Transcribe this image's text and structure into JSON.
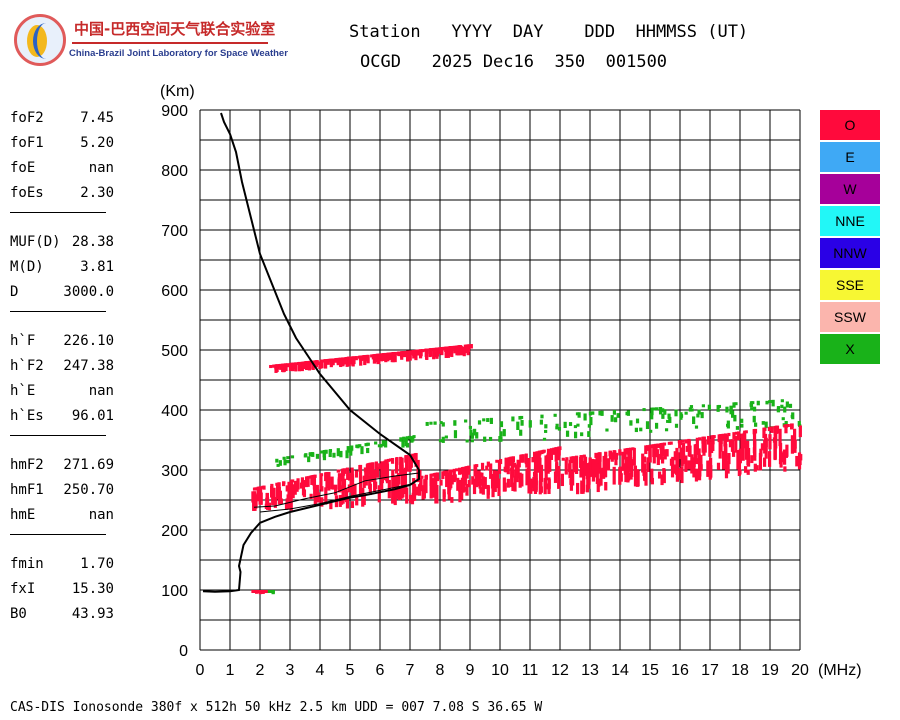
{
  "logo": {
    "name_cn": "中国-巴西空间天气联合实验室",
    "name_en": "China-Brazil Joint Laboratory for Space Weather"
  },
  "header": {
    "labels": "Station   YYYY  DAY    DDD  HHMMSS (UT)",
    "values": "OCGD   2025 Dec16  350  001500"
  },
  "parameters": [
    [
      {
        "label": "foF2",
        "value": "7.45"
      },
      {
        "label": "foF1",
        "value": "5.20"
      },
      {
        "label": "foE",
        "value": "nan"
      },
      {
        "label": "foEs",
        "value": "2.30"
      }
    ],
    [
      {
        "label": "MUF(D)",
        "value": "28.38"
      },
      {
        "label": "M(D)",
        "value": "3.81"
      },
      {
        "label": "D",
        "value": "3000.0"
      }
    ],
    [
      {
        "label": "h`F",
        "value": "226.10"
      },
      {
        "label": "h`F2",
        "value": "247.38"
      },
      {
        "label": "h`E",
        "value": "nan"
      },
      {
        "label": "h`Es",
        "value": "96.01"
      }
    ],
    [
      {
        "label": "hmF2",
        "value": "271.69"
      },
      {
        "label": "hmF1",
        "value": "250.70"
      },
      {
        "label": "hmE",
        "value": "nan"
      }
    ],
    [
      {
        "label": "fmin",
        "value": "1.70"
      },
      {
        "label": "fxI",
        "value": "15.30"
      },
      {
        "label": "B0",
        "value": "43.93"
      }
    ]
  ],
  "legend": [
    {
      "label": "O",
      "color": "#ff0a3c"
    },
    {
      "label": "E",
      "color": "#3fa9f5"
    },
    {
      "label": "W",
      "color": "#a6009a"
    },
    {
      "label": "NNE",
      "color": "#22f7f7"
    },
    {
      "label": "NNW",
      "color": "#2a00e6"
    },
    {
      "label": "SSE",
      "color": "#f7f733"
    },
    {
      "label": "SSW",
      "color": "#fbb5ad"
    },
    {
      "label": "X",
      "color": "#19b219"
    }
  ],
  "footer": "CAS-DIS Ionosonde 380f x 512h 50 kHz 2.5 km UDD = 007 7.08 S 36.65 W",
  "chart_data": {
    "type": "scatter",
    "xlabel": "(MHz)",
    "ylabel": "(Km)",
    "xlim": [
      0,
      20
    ],
    "ylim": [
      0,
      900
    ],
    "xticks": [
      0,
      1,
      2,
      3,
      4,
      5,
      6,
      7,
      8,
      9,
      10,
      11,
      12,
      13,
      14,
      15,
      16,
      17,
      18,
      19,
      20
    ],
    "yticks": [
      0,
      100,
      200,
      300,
      400,
      500,
      600,
      700,
      800,
      900
    ],
    "grid": true,
    "colors": {
      "O": "#ff0a3c",
      "X": "#19b219"
    },
    "echo_clusters": [
      {
        "mode": "O",
        "x": [
          1.7,
          7.3
        ],
        "y_low": [
          230,
          240
        ],
        "y_high": [
          270,
          330
        ]
      },
      {
        "mode": "O",
        "x": [
          7.3,
          12.0
        ],
        "y_low": [
          240,
          260
        ],
        "y_high": [
          290,
          340
        ]
      },
      {
        "mode": "O",
        "x": [
          12.0,
          20.0
        ],
        "y_low": [
          255,
          300
        ],
        "y_high": [
          320,
          380
        ]
      },
      {
        "mode": "O",
        "x": [
          2.3,
          9.0
        ],
        "y_low": [
          460,
          490
        ],
        "y_high": [
          475,
          510
        ]
      },
      {
        "mode": "O",
        "x": [
          1.7,
          2.2
        ],
        "y_low": [
          93,
          93
        ],
        "y_high": [
          100,
          100
        ]
      },
      {
        "mode": "X",
        "x": [
          1.9,
          2.5
        ],
        "y_low": [
          92,
          92
        ],
        "y_high": [
          100,
          100
        ]
      },
      {
        "mode": "X",
        "x": [
          2.5,
          7.3
        ],
        "y_low": [
          300,
          340
        ],
        "y_high": [
          320,
          360
        ]
      },
      {
        "mode": "X",
        "x": [
          7.5,
          20.0
        ],
        "y_low": [
          340,
          370
        ],
        "y_high": [
          380,
          420
        ]
      }
    ],
    "profile": {
      "x": [
        0.1,
        0.5,
        1.0,
        1.3,
        1.35,
        1.3,
        1.45,
        1.7,
        2.0,
        2.5,
        3.0,
        3.5,
        4.0,
        4.5,
        5.0,
        5.5,
        6.0,
        6.5,
        7.0,
        7.3,
        7.3,
        7.0,
        6.0,
        5.0,
        4.5,
        4.0,
        3.6,
        3.2,
        2.8,
        2.4,
        2.0,
        1.7,
        1.4,
        1.2,
        1.0,
        0.8,
        0.7
      ],
      "y": [
        98,
        97,
        98,
        100,
        130,
        140,
        175,
        195,
        212,
        222,
        230,
        236,
        242,
        248,
        254,
        258,
        263,
        268,
        275,
        285,
        300,
        325,
        360,
        400,
        430,
        460,
        490,
        520,
        560,
        610,
        660,
        720,
        780,
        830,
        860,
        880,
        895
      ]
    },
    "trace_lines": [
      {
        "x": [
          1.8,
          2.5,
          3.5,
          4.5,
          5.5,
          6.5,
          7.3
        ],
        "y": [
          238,
          240,
          252,
          262,
          282,
          290,
          295
        ]
      },
      {
        "x": [
          2.0,
          3.0,
          4.0,
          5.0,
          6.0,
          7.0,
          7.3
        ],
        "y": [
          230,
          235,
          244,
          256,
          266,
          276,
          284
        ]
      }
    ]
  }
}
